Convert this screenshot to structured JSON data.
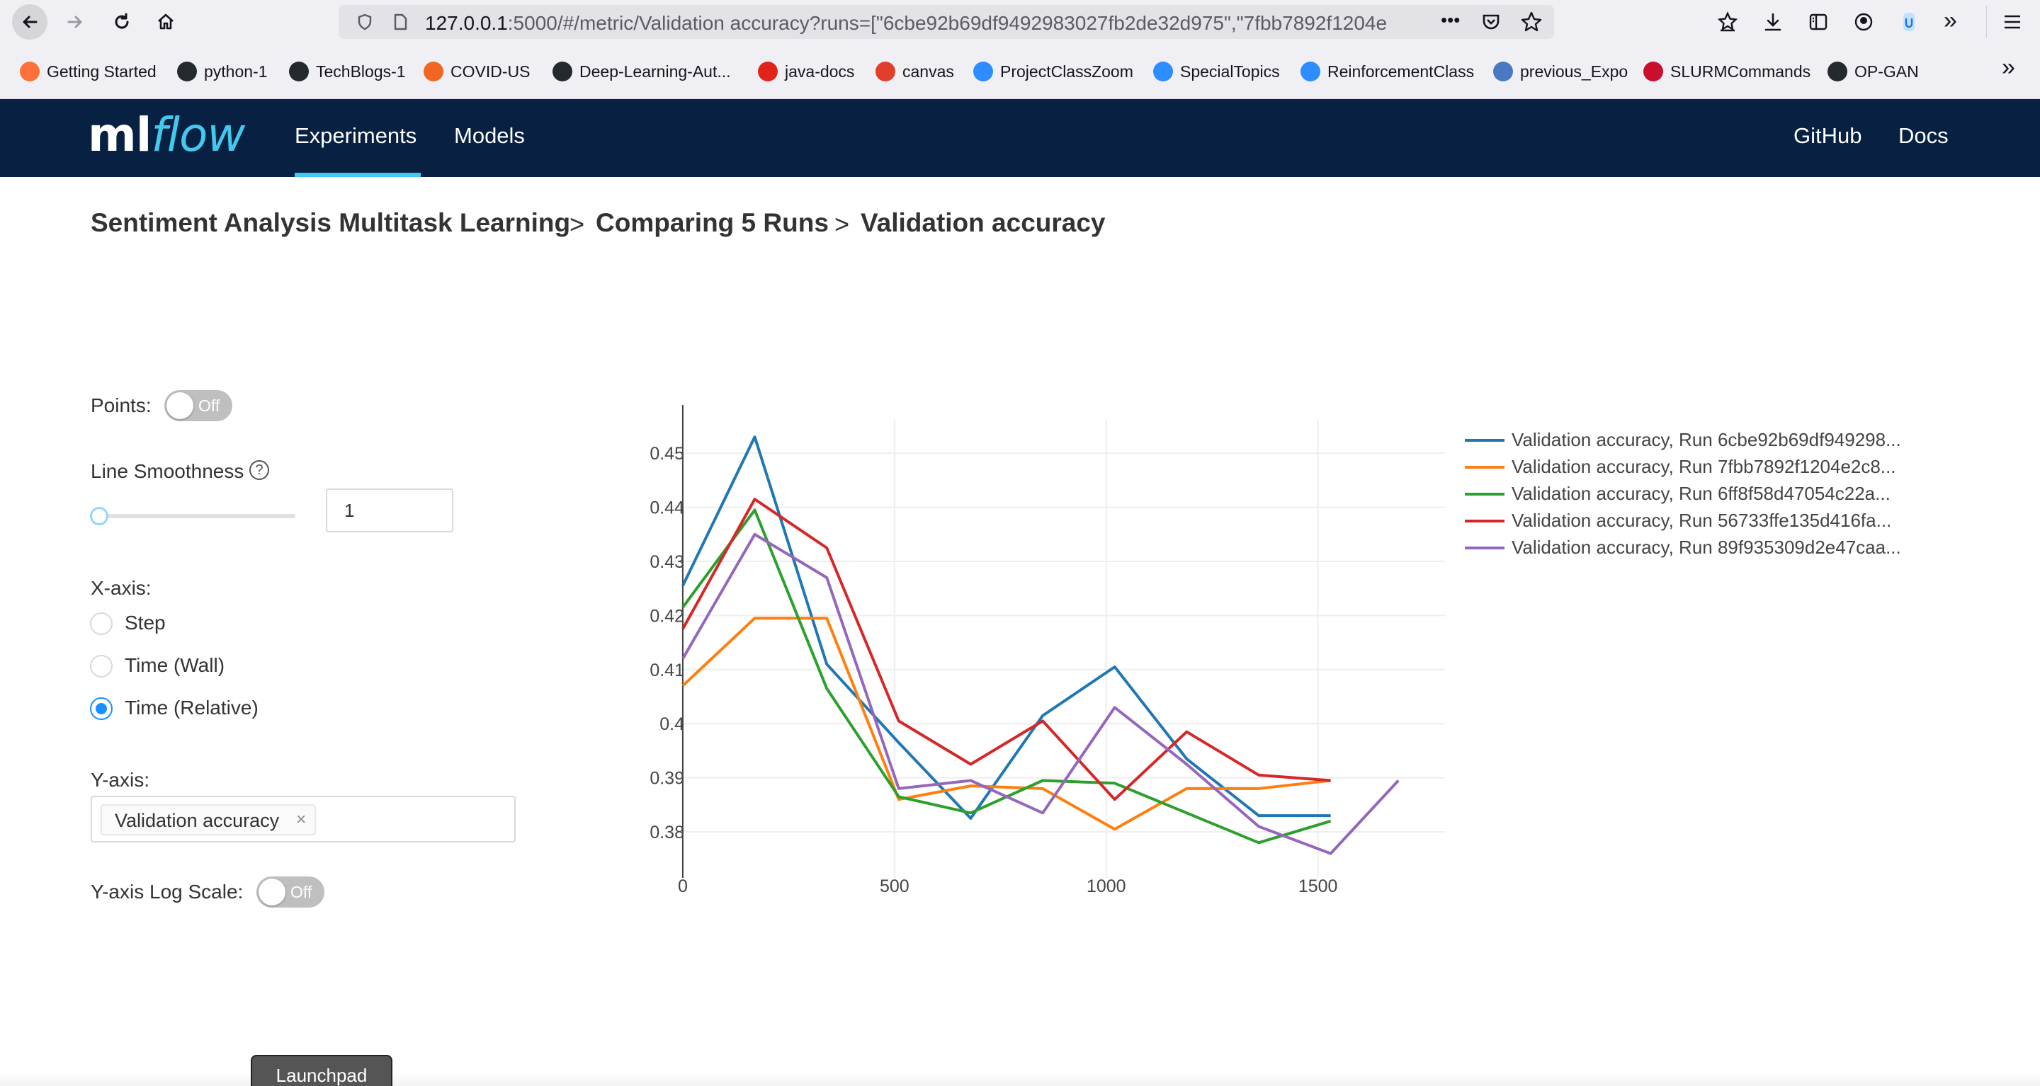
{
  "browser": {
    "url_host": "127.0.0.1",
    "url_rest": ":5000/#/metric/Validation accuracy?runs=[\"6cbe92b69df9492983027fb2de32d975\",\"7fbb7892f1204e",
    "more_label": "•••"
  },
  "bookmarks": [
    {
      "label": "Getting Started",
      "icon": "firefox-icon",
      "color": "#ff7139"
    },
    {
      "label": "python-1",
      "icon": "github-icon",
      "color": "#24292e"
    },
    {
      "label": "TechBlogs-1",
      "icon": "github-icon",
      "color": "#24292e"
    },
    {
      "label": "COVID-US",
      "icon": "lungs-icon",
      "color": "#f26522"
    },
    {
      "label": "Deep-Learning-Aut...",
      "icon": "github-icon",
      "color": "#24292e"
    },
    {
      "label": "java-docs",
      "icon": "oracle-icon",
      "color": "#e2231a"
    },
    {
      "label": "canvas",
      "icon": "canvas-icon",
      "color": "#e13f2b"
    },
    {
      "label": "ProjectClassZoom",
      "icon": "zoom-icon",
      "color": "#2d8cff"
    },
    {
      "label": "SpecialTopics",
      "icon": "zoom-icon",
      "color": "#2d8cff"
    },
    {
      "label": "ReinforcementClass",
      "icon": "zoom-icon",
      "color": "#2d8cff"
    },
    {
      "label": "previous_Expo",
      "icon": "grid-icon",
      "color": "#4a78c2"
    },
    {
      "label": "SLURMCommands",
      "icon": "slurm-icon",
      "color": "#c8102e"
    },
    {
      "label": "OP-GAN",
      "icon": "github-icon",
      "color": "#24292e"
    }
  ],
  "header": {
    "logo_ml": "ml",
    "logo_flow": "flow",
    "nav_experiments": "Experiments",
    "nav_models": "Models",
    "nav_github": "GitHub",
    "nav_docs": "Docs"
  },
  "breadcrumb": {
    "experiment": "Sentiment Analysis Multitask Learning",
    "compare": "Comparing 5 Runs",
    "metric": "Validation accuracy",
    "separator": ">"
  },
  "controls": {
    "points_label": "Points:",
    "points_toggle": "Off",
    "smoothness_label": "Line Smoothness",
    "help_glyph": "?",
    "smoothness_value": "1",
    "smoothness_fraction": 0.0,
    "xaxis_label": "X-axis:",
    "xaxis_options": [
      "Step",
      "Time (Wall)",
      "Time (Relative)"
    ],
    "xaxis_selected": "Time (Relative)",
    "yaxis_label": "Y-axis:",
    "yaxis_tag": "Validation accuracy",
    "tag_close_glyph": "×",
    "log_scale_label": "Y-axis Log Scale:",
    "log_scale_toggle": "Off"
  },
  "launchpad_label": "Launchpad",
  "chart_data": {
    "type": "line",
    "title": "",
    "xlabel": "",
    "ylabel": "",
    "xlim": [
      -40,
      1800
    ],
    "ylim": [
      0.3715,
      0.4563
    ],
    "x_ticks": [
      0,
      500,
      1000,
      1500
    ],
    "y_ticks": [
      0.38,
      0.39,
      0.4,
      0.41,
      0.42,
      0.43,
      0.44,
      0.45
    ],
    "y_tick_labels": [
      "0.38",
      "0.39",
      "0.4",
      "0.41",
      "0.42",
      "0.43",
      "0.44",
      "0.45"
    ],
    "grid": true,
    "legend_position": "right",
    "series": [
      {
        "name": "Validation accuracy, Run 6cbe92b69df949298...",
        "color": "#1f77b4",
        "x": [
          0,
          170,
          340,
          510,
          680,
          850,
          1020,
          1190,
          1360,
          1530
        ],
        "y": [
          0.4255,
          0.453,
          0.411,
          0.3965,
          0.3825,
          0.4015,
          0.4105,
          0.3935,
          0.383,
          0.383
        ]
      },
      {
        "name": "Validation accuracy, Run 7fbb7892f1204e2c8...",
        "color": "#ff7f0e",
        "x": [
          0,
          170,
          340,
          510,
          680,
          850,
          1020,
          1190,
          1360,
          1530
        ],
        "y": [
          0.407,
          0.4195,
          0.4195,
          0.386,
          0.3885,
          0.388,
          0.3805,
          0.388,
          0.388,
          0.3895
        ]
      },
      {
        "name": "Validation accuracy, Run 6ff8f58d47054c22a...",
        "color": "#2ca02c",
        "x": [
          0,
          170,
          340,
          510,
          680,
          850,
          1020,
          1190,
          1360,
          1530
        ],
        "y": [
          0.4215,
          0.4395,
          0.4065,
          0.3865,
          0.3835,
          0.3895,
          0.389,
          0.3835,
          0.378,
          0.382
        ]
      },
      {
        "name": "Validation accuracy, Run 56733ffe135d416fa...",
        "color": "#d62728",
        "x": [
          0,
          170,
          340,
          510,
          680,
          850,
          1020,
          1190,
          1360,
          1530
        ],
        "y": [
          0.4175,
          0.4415,
          0.4325,
          0.4005,
          0.3925,
          0.4005,
          0.386,
          0.3985,
          0.3905,
          0.3895
        ]
      },
      {
        "name": "Validation accuracy, Run 89f935309d2e47caa...",
        "color": "#9467bd",
        "x": [
          0,
          170,
          340,
          510,
          680,
          850,
          1020,
          1190,
          1360,
          1530,
          1690
        ],
        "y": [
          0.412,
          0.435,
          0.427,
          0.388,
          0.3895,
          0.3835,
          0.403,
          0.3925,
          0.381,
          0.376,
          0.3895
        ]
      }
    ]
  }
}
